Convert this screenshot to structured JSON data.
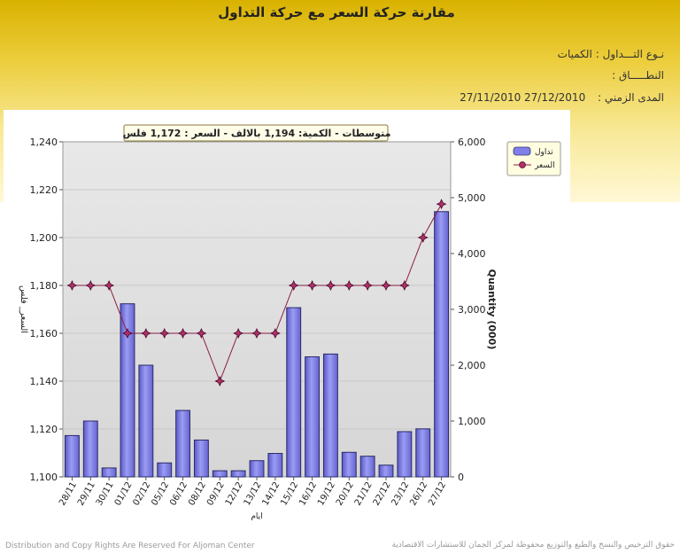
{
  "page": {
    "title": "مقارنة حركة السعر مع حركة التداول",
    "type_label": "نـوع التـــداول :",
    "type_value": "الكميات",
    "range_label": "النطـــــاق :",
    "period_label": "المدى الزمني :",
    "period_value": "27/11/2010 27/12/2010",
    "footer_left": "Distribution and Copy Rights Are Reserved For Aljoman Center",
    "footer_right": "حقوق الترخيص والنسخ والطبع والتوزيع محفوظة لمركز الجمان للاستشارات الاقتصادية"
  },
  "chart_data": {
    "type": "bar",
    "caption": "متوسطات - الكمية: 1,194 بالالف  - السعر : 1,172 فلس",
    "xlabel": "ايام",
    "y_left_label": "السعر_ فلس",
    "y_right_label": "Quantity (000)",
    "categories": [
      "28/11",
      "29/11",
      "30/11",
      "01/12",
      "02/12",
      "05/12",
      "06/12",
      "08/12",
      "09/12",
      "12/12",
      "13/12",
      "14/12",
      "15/12",
      "16/12",
      "19/12",
      "20/12",
      "21/12",
      "22/12",
      "23/12",
      "26/12",
      "27/12"
    ],
    "y_left_ticks": [
      "1,100",
      "1,120",
      "1,140",
      "1,160",
      "1,180",
      "1,200",
      "1,220",
      "1,240"
    ],
    "y_left_range": [
      1100,
      1240
    ],
    "y_right_ticks": [
      "0",
      "1,000",
      "2,000",
      "3,000",
      "4,000",
      "5,000",
      "6,000"
    ],
    "y_right_range": [
      0,
      6000
    ],
    "series": [
      {
        "name": "تداول",
        "kind": "bar",
        "axis": "right",
        "color": "#8080e8",
        "values": [
          740,
          1000,
          160,
          3100,
          2000,
          250,
          1190,
          660,
          110,
          110,
          290,
          420,
          3030,
          2150,
          2200,
          440,
          370,
          210,
          810,
          860,
          4750
        ]
      },
      {
        "name": "السعر",
        "kind": "line",
        "axis": "left",
        "color": "#8b1c45",
        "values": [
          1180,
          1180,
          1180,
          1160,
          1160,
          1160,
          1160,
          1160,
          1140,
          1160,
          1160,
          1160,
          1180,
          1180,
          1180,
          1180,
          1180,
          1180,
          1180,
          1200,
          1214
        ]
      }
    ],
    "grid": true,
    "legend": "top-right"
  }
}
